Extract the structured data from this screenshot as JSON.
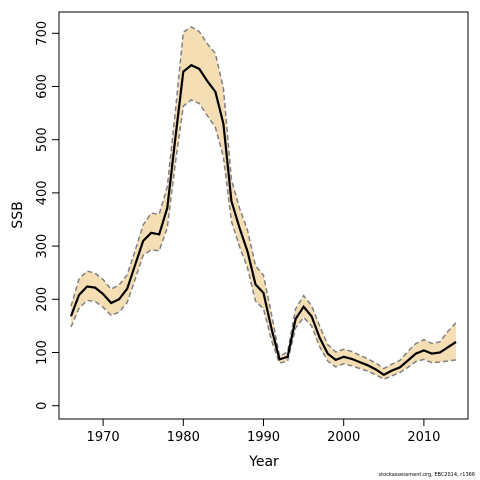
{
  "chart_data": {
    "type": "area",
    "xlabel": "Year",
    "ylabel": "SSB",
    "xlim": [
      1964.5,
      2015.5
    ],
    "ylim": [
      -25,
      740
    ],
    "x_ticks": [
      1970,
      1980,
      1990,
      2000,
      2010
    ],
    "y_ticks": [
      0,
      100,
      200,
      300,
      400,
      500,
      600,
      700
    ],
    "footnote": "stockassessment.org, EBC2014, r1366",
    "colors": {
      "band": "#f5deb3",
      "estimate": "#000000",
      "bounds": "#808080"
    },
    "x": [
      1966,
      1967,
      1968,
      1969,
      1970,
      1971,
      1972,
      1973,
      1974,
      1975,
      1976,
      1977,
      1978,
      1979,
      1980,
      1981,
      1982,
      1983,
      1984,
      1985,
      1986,
      1987,
      1988,
      1989,
      1990,
      1991,
      1992,
      1993,
      1994,
      1995,
      1996,
      1997,
      1998,
      1999,
      2000,
      2001,
      2002,
      2003,
      2004,
      2005,
      2006,
      2007,
      2008,
      2009,
      2010,
      2011,
      2012,
      2013,
      2014
    ],
    "series": [
      {
        "values": [
          168,
          208,
          224,
          222,
          210,
          193,
          200,
          220,
          265,
          310,
          325,
          322,
          372,
          502,
          628,
          640,
          633,
          610,
          590,
          530,
          385,
          335,
          290,
          228,
          212,
          145,
          87,
          92,
          163,
          186,
          168,
          128,
          98,
          86,
          92,
          88,
          82,
          76,
          68,
          58,
          66,
          72,
          85,
          98,
          104,
          98,
          100,
          110,
          120
        ]
      },
      {
        "values": [
          187,
          238,
          253,
          249,
          237,
          219,
          227,
          246,
          292,
          340,
          362,
          360,
          412,
          552,
          702,
          712,
          703,
          680,
          662,
          597,
          425,
          372,
          330,
          263,
          245,
          172,
          93,
          101,
          182,
          207,
          188,
          150,
          115,
          101,
          106,
          102,
          95,
          88,
          80,
          70,
          78,
          85,
          102,
          117,
          124,
          117,
          120,
          140,
          156
        ]
      },
      {
        "values": [
          148,
          183,
          198,
          196,
          185,
          170,
          176,
          194,
          238,
          283,
          293,
          291,
          335,
          455,
          563,
          575,
          568,
          545,
          523,
          468,
          347,
          300,
          259,
          197,
          182,
          123,
          80,
          84,
          146,
          166,
          150,
          111,
          84,
          73,
          79,
          75,
          70,
          65,
          58,
          50,
          56,
          62,
          72,
          83,
          87,
          81,
          82,
          84,
          86
        ]
      }
    ]
  }
}
